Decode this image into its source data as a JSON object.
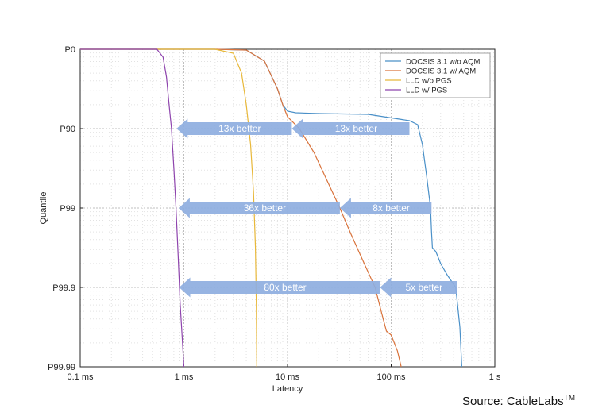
{
  "chart_data": {
    "type": "line",
    "title": "",
    "xlabel": "Latency",
    "ylabel": "Quantile",
    "x_scale": "log",
    "xlim_ms": [
      0.1,
      1000
    ],
    "x_ticks": [
      {
        "value": 0.1,
        "label": "0.1 ms"
      },
      {
        "value": 1,
        "label": "1 ms"
      },
      {
        "value": 10,
        "label": "10 ms"
      },
      {
        "value": 100,
        "label": "100 ms"
      },
      {
        "value": 1000,
        "label": "1 s"
      }
    ],
    "y_scale": "nines",
    "y_ticks": [
      {
        "nines": 0,
        "label": "P0"
      },
      {
        "nines": 1,
        "label": "P90"
      },
      {
        "nines": 2,
        "label": "P99"
      },
      {
        "nines": 3,
        "label": "P99.9"
      },
      {
        "nines": 4,
        "label": "P99.99"
      }
    ],
    "grid": true,
    "legend_position": "top-right",
    "series": [
      {
        "name": "DOCSIS 3.1 w/o AQM",
        "color": "#4a90c8",
        "points": [
          [
            0.1,
            0
          ],
          [
            2,
            0
          ],
          [
            4,
            0.01
          ],
          [
            6,
            0.15
          ],
          [
            8,
            0.5
          ],
          [
            9,
            0.7
          ],
          [
            10,
            0.78
          ],
          [
            12,
            0.8
          ],
          [
            20,
            0.81
          ],
          [
            60,
            0.82
          ],
          [
            120,
            0.88
          ],
          [
            150,
            0.9
          ],
          [
            180,
            0.95
          ],
          [
            200,
            1.2
          ],
          [
            220,
            1.6
          ],
          [
            240,
            2.0
          ],
          [
            245,
            2.3
          ],
          [
            250,
            2.5
          ],
          [
            270,
            2.55
          ],
          [
            300,
            2.7
          ],
          [
            350,
            2.85
          ],
          [
            420,
            3.0
          ],
          [
            460,
            3.5
          ],
          [
            480,
            4.0
          ]
        ]
      },
      {
        "name": "DOCSIS 3.1 w/ AQM",
        "color": "#d9733c",
        "points": [
          [
            0.1,
            0
          ],
          [
            2,
            0
          ],
          [
            4,
            0.01
          ],
          [
            6,
            0.15
          ],
          [
            8,
            0.5
          ],
          [
            9,
            0.7
          ],
          [
            10,
            0.85
          ],
          [
            13,
            1.0
          ],
          [
            18,
            1.3
          ],
          [
            25,
            1.7
          ],
          [
            32,
            2.0
          ],
          [
            40,
            2.3
          ],
          [
            55,
            2.7
          ],
          [
            70,
            3.0
          ],
          [
            80,
            3.3
          ],
          [
            90,
            3.55
          ],
          [
            100,
            3.6
          ],
          [
            115,
            3.8
          ],
          [
            125,
            4.0
          ]
        ]
      },
      {
        "name": "LLD w/o PGS",
        "color": "#e8b83a",
        "points": [
          [
            0.1,
            0
          ],
          [
            2,
            0
          ],
          [
            3,
            0.05
          ],
          [
            3.6,
            0.3
          ],
          [
            4.0,
            0.7
          ],
          [
            4.4,
            1.2
          ],
          [
            4.7,
            1.8
          ],
          [
            4.9,
            2.5
          ],
          [
            5.0,
            3.2
          ],
          [
            5.05,
            4.0
          ]
        ]
      },
      {
        "name": "LLD w/ PGS",
        "color": "#8e44ad",
        "points": [
          [
            0.1,
            0
          ],
          [
            0.55,
            0
          ],
          [
            0.63,
            0.1
          ],
          [
            0.68,
            0.35
          ],
          [
            0.72,
            0.7
          ],
          [
            0.76,
            1.0
          ],
          [
            0.8,
            1.5
          ],
          [
            0.84,
            2.0
          ],
          [
            0.88,
            2.6
          ],
          [
            0.92,
            3.2
          ],
          [
            0.97,
            3.7
          ],
          [
            1.0,
            4.0
          ]
        ]
      }
    ],
    "annotations": [
      {
        "text": "13x better",
        "from_ms": 11,
        "to_ms": 0.85,
        "nines": 1
      },
      {
        "text": "13x better",
        "from_ms": 150,
        "to_ms": 11,
        "nines": 1
      },
      {
        "text": "36x better",
        "from_ms": 32,
        "to_ms": 0.89,
        "nines": 2
      },
      {
        "text": "8x better",
        "from_ms": 245,
        "to_ms": 32,
        "nines": 2
      },
      {
        "text": "80x better",
        "from_ms": 78,
        "to_ms": 0.9,
        "nines": 3
      },
      {
        "text": "5x better",
        "from_ms": 430,
        "to_ms": 78,
        "nines": 3
      }
    ]
  },
  "source": {
    "text": "Source: CableLabs",
    "superscript": "TM"
  }
}
